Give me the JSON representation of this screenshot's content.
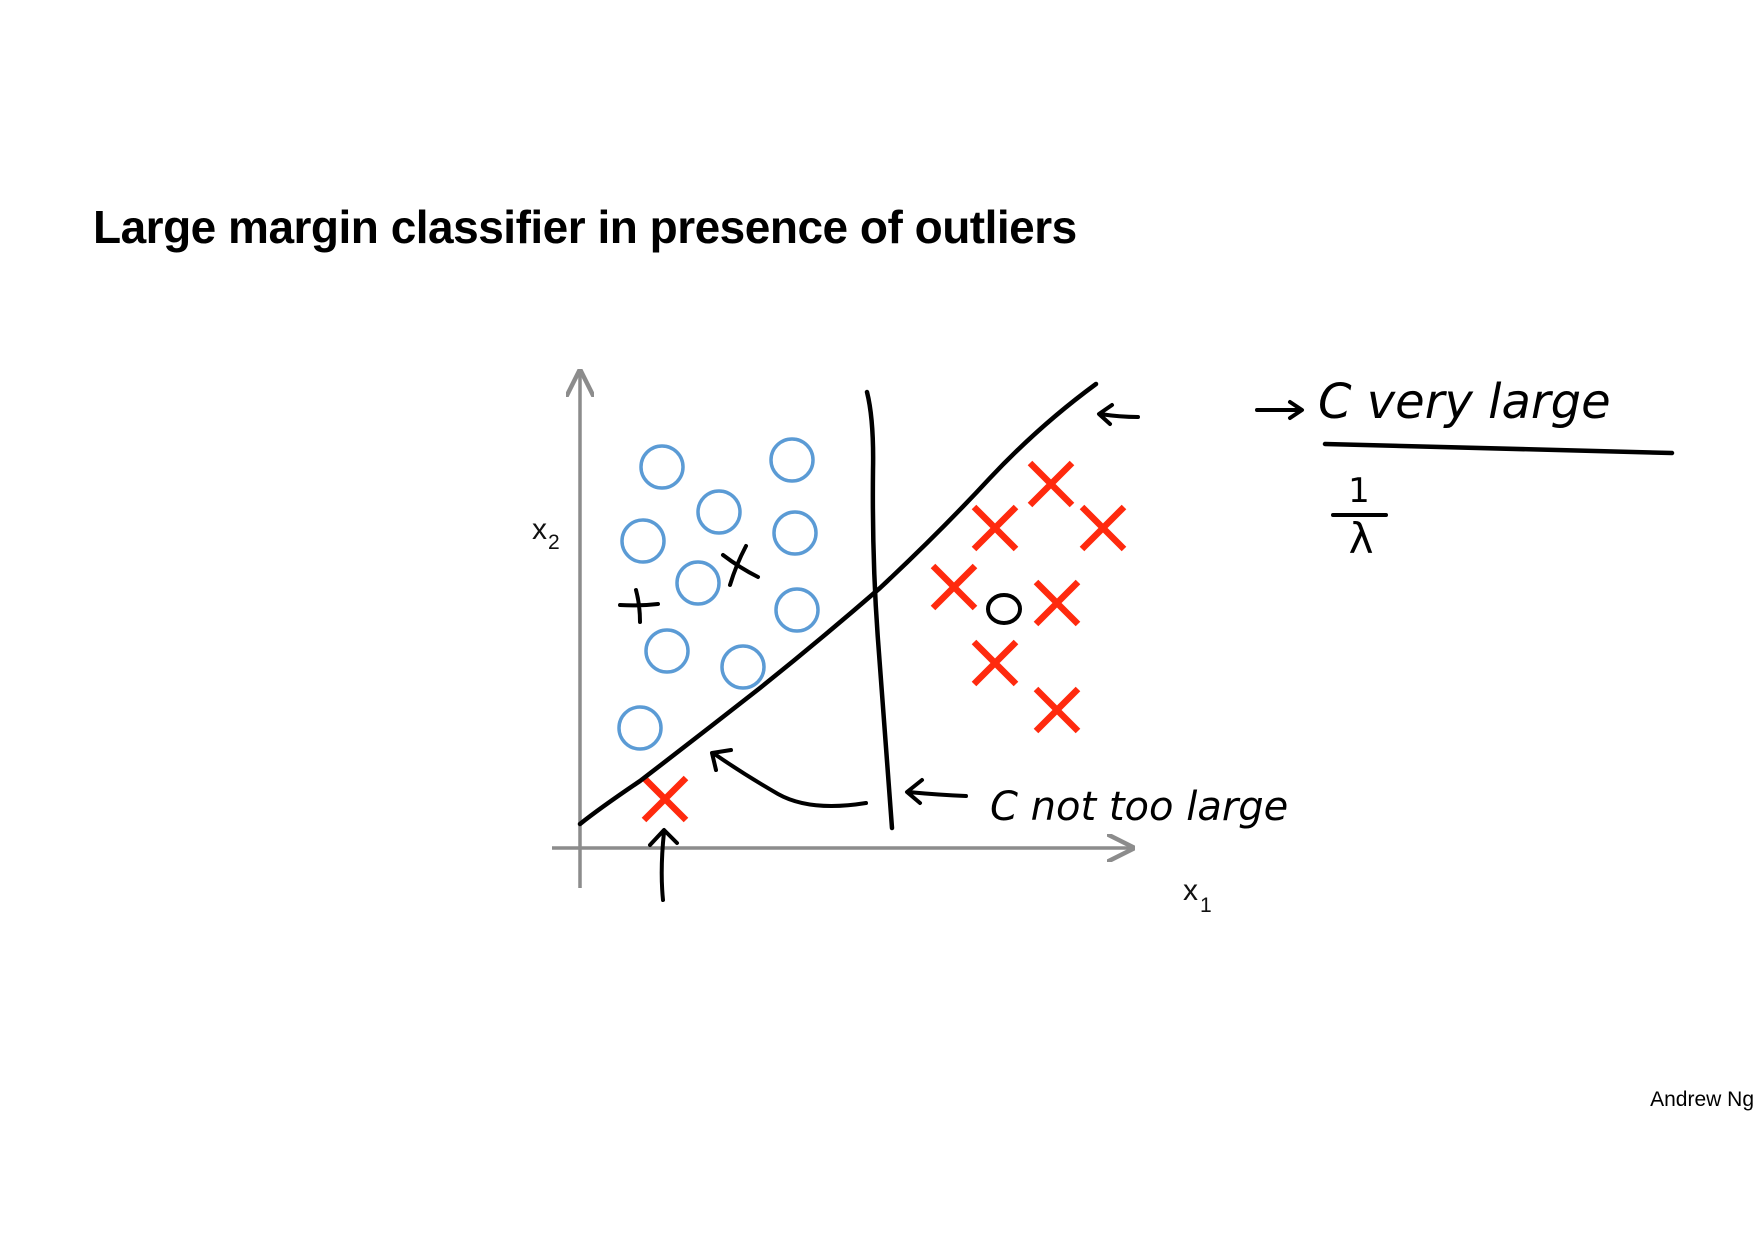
{
  "slide": {
    "title": "Large margin classifier in presence of outliers",
    "footer": "Andrew Ng"
  },
  "diagram": {
    "axes": {
      "x_label": "x",
      "x_sub": "1",
      "y_label": "x",
      "y_sub": "2"
    },
    "annotations": {
      "c_very_large": "C very large",
      "one_over_lambda_num": "1",
      "one_over_lambda_den": "λ",
      "c_not_too_large": "C not too large"
    },
    "colors": {
      "negative_class": "#5b9bd5",
      "positive_class": "#ff2a0e",
      "ink": "#000000",
      "axis": "#8c8c8c"
    }
  }
}
